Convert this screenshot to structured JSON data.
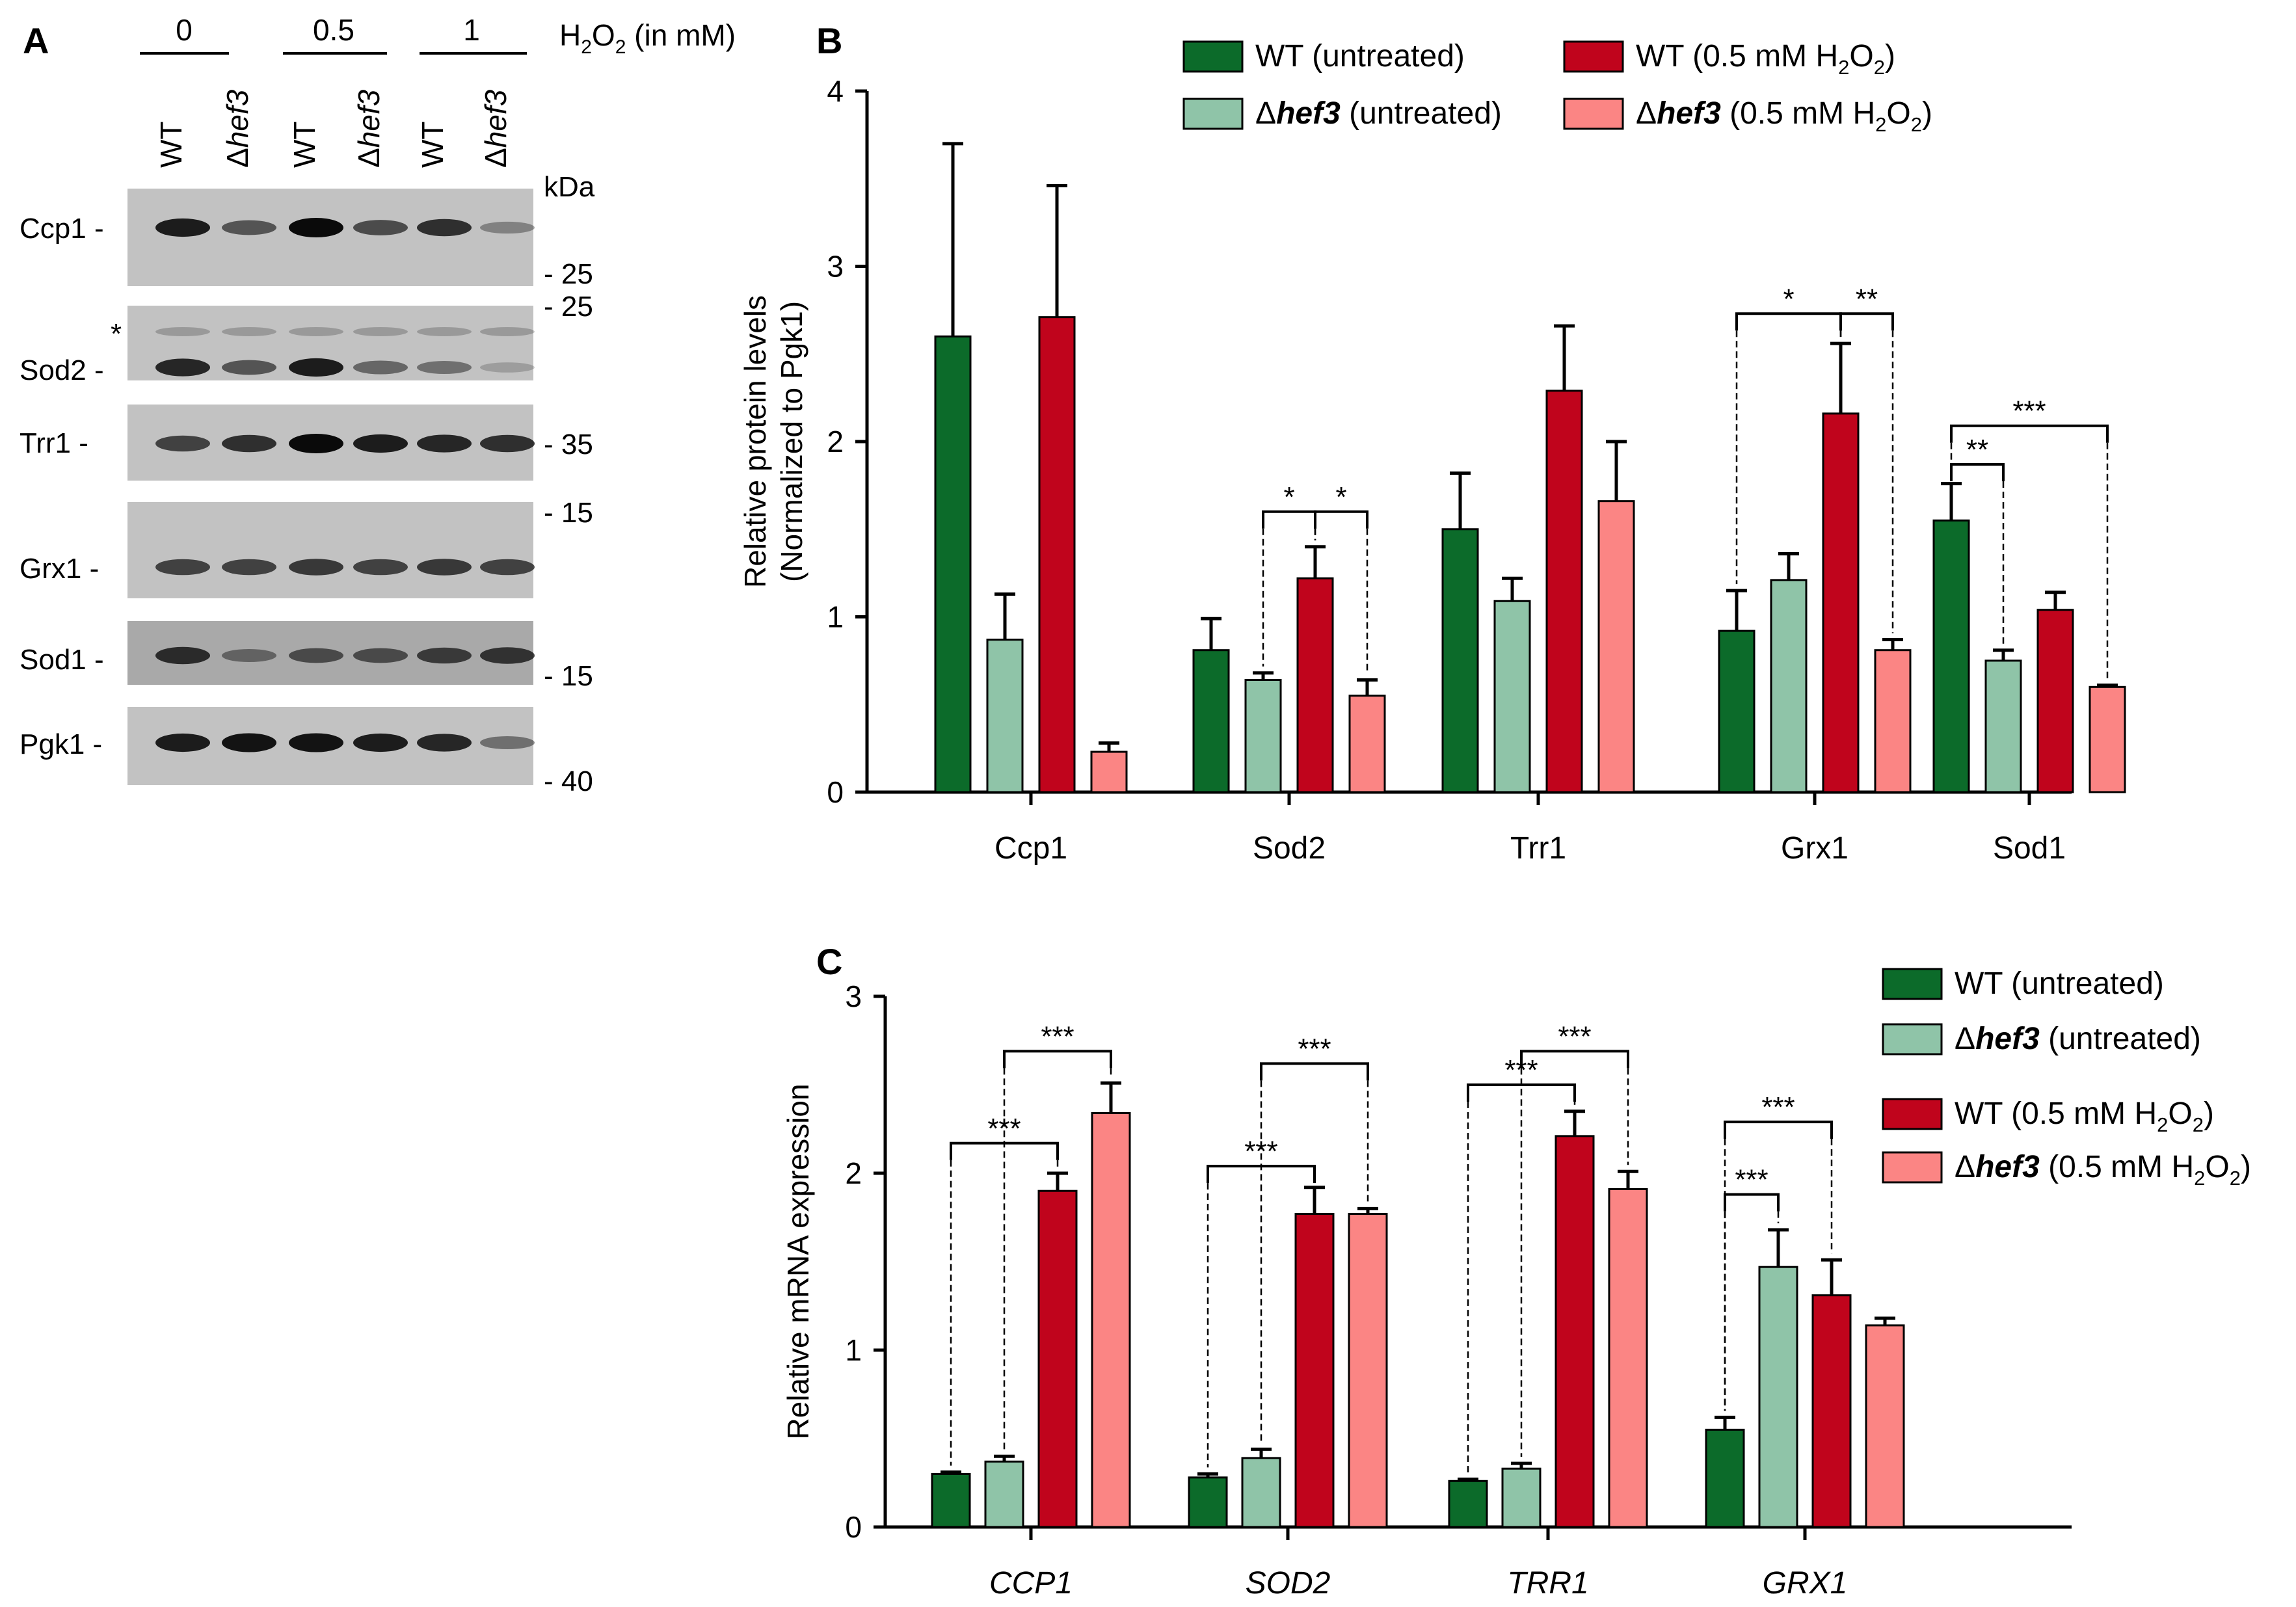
{
  "colors": {
    "wt_untreated": "#0c6b2a",
    "hef3_untreated": "#8fc4a8",
    "wt_h2o2": "#c0041c",
    "hef3_h2o2": "#fb8584",
    "blot_bg": "#c2c2c2"
  },
  "panelA": {
    "label": "A",
    "treatment_label": "H2O2 (in mM)",
    "doses": [
      "0",
      "0.5",
      "1"
    ],
    "lane_labels": [
      "WT",
      "Δhef3",
      "WT",
      "Δhef3",
      "WT",
      "Δhef3"
    ],
    "kda_label": "kDa",
    "nonspecific_marker": "*",
    "proteins": [
      "Ccp1",
      "Sod2",
      "Trr1",
      "Grx1",
      "Sod1",
      "Pgk1"
    ],
    "markers": [
      "25",
      "25",
      "35",
      "15",
      "15",
      "40"
    ],
    "band_intensity": {
      "Ccp1": [
        0.9,
        0.6,
        1.0,
        0.65,
        0.8,
        0.35
      ],
      "Sod2": [
        0.85,
        0.6,
        0.9,
        0.5,
        0.45,
        0.2
      ],
      "Trr1": [
        0.7,
        0.8,
        1.0,
        0.9,
        0.85,
        0.8
      ],
      "Grx1": [
        0.7,
        0.7,
        0.75,
        0.7,
        0.75,
        0.7
      ],
      "Sod1": [
        0.8,
        0.45,
        0.6,
        0.6,
        0.7,
        0.75
      ],
      "Pgk1": [
        0.9,
        0.95,
        0.95,
        0.9,
        0.85,
        0.45
      ]
    }
  },
  "legendB": [
    "WT (untreated)",
    "Δhef3 (untreated)",
    "WT (0.5 mM H2O2)",
    "Δhef3 (0.5 mM H2O2)"
  ],
  "legendC": [
    "WT (untreated)",
    "Δhef3 (untreated)",
    "WT (0.5 mM H2O2)",
    "Δhef3 (0.5 mM H2O2)"
  ],
  "chart_data": [
    {
      "panel": "B",
      "type": "bar",
      "ylabel": "Relative protein levels (Normalized to Pgk1)",
      "ylabel_lines": [
        "Relative protein levels",
        "(Normalized to Pgk1)"
      ],
      "ylim": [
        0,
        4
      ],
      "yticks": [
        0,
        1,
        2,
        3,
        4
      ],
      "categories": [
        "Ccp1",
        "Sod2",
        "Trr1",
        "Grx1",
        "Sod1"
      ],
      "italic_categories": false,
      "series": [
        {
          "name": "WT (untreated)",
          "values": [
            2.6,
            0.81,
            1.5,
            0.92,
            1.55
          ],
          "errors": [
            1.1,
            0.18,
            0.32,
            0.23,
            0.21
          ]
        },
        {
          "name": "Δhef3 (untreated)",
          "values": [
            0.87,
            0.64,
            1.09,
            1.21,
            0.75
          ],
          "errors": [
            0.26,
            0.04,
            0.13,
            0.15,
            0.06
          ]
        },
        {
          "name": "WT (0.5 mM H2O2)",
          "values": [
            2.71,
            1.22,
            2.29,
            2.16,
            1.04
          ],
          "errors": [
            0.75,
            0.18,
            0.37,
            0.4,
            0.1
          ]
        },
        {
          "name": "Δhef3 (0.5 mM H2O2)",
          "values": [
            0.23,
            0.55,
            1.66,
            0.81,
            0.6
          ],
          "errors": [
            0.05,
            0.09,
            0.34,
            0.06,
            0.01
          ]
        }
      ],
      "significance": [
        {
          "category": "Sod2",
          "from": 1,
          "to": 2,
          "label": "*",
          "level": 1.6
        },
        {
          "category": "Sod2",
          "from": 2,
          "to": 3,
          "label": "*",
          "level": 1.6
        },
        {
          "category": "Grx1",
          "from": 0,
          "to": 2,
          "label": "*",
          "level": 2.73
        },
        {
          "category": "Grx1",
          "from": 2,
          "to": 3,
          "label": "**",
          "level": 2.73
        },
        {
          "category": "Sod1",
          "from": 0,
          "to": 1,
          "label": "**",
          "level": 1.87
        },
        {
          "category": "Sod1",
          "from": 0,
          "to": 3,
          "label": "***",
          "level": 2.09
        }
      ]
    },
    {
      "panel": "C",
      "type": "bar",
      "ylabel": "Relative mRNA expression",
      "ylabel_lines": [
        "Relative mRNA expression"
      ],
      "ylim": [
        0,
        3
      ],
      "yticks": [
        0,
        1,
        2,
        3
      ],
      "categories": [
        "CCP1",
        "SOD2",
        "TRR1",
        "GRX1"
      ],
      "italic_categories": true,
      "series": [
        {
          "name": "WT (untreated)",
          "values": [
            0.3,
            0.28,
            0.26,
            0.55
          ],
          "errors": [
            0.01,
            0.02,
            0.01,
            0.07
          ]
        },
        {
          "name": "Δhef3 (untreated)",
          "values": [
            0.37,
            0.39,
            0.33,
            1.47
          ],
          "errors": [
            0.03,
            0.05,
            0.03,
            0.21
          ]
        },
        {
          "name": "WT (0.5 mM H2O2)",
          "values": [
            1.9,
            1.77,
            2.21,
            1.31
          ],
          "errors": [
            0.1,
            0.15,
            0.14,
            0.2
          ]
        },
        {
          "name": "Δhef3 (0.5 mM H2O2)",
          "values": [
            2.34,
            1.77,
            1.91,
            1.14
          ],
          "errors": [
            0.17,
            0.03,
            0.1,
            0.04
          ]
        }
      ],
      "significance": [
        {
          "category": "CCP1",
          "from": 0,
          "to": 2,
          "label": "***",
          "level": 2.17
        },
        {
          "category": "CCP1",
          "from": 1,
          "to": 3,
          "label": "***",
          "level": 2.69
        },
        {
          "category": "SOD2",
          "from": 0,
          "to": 2,
          "label": "***",
          "level": 2.04
        },
        {
          "category": "SOD2",
          "from": 1,
          "to": 3,
          "label": "***",
          "level": 2.62
        },
        {
          "category": "TRR1",
          "from": 0,
          "to": 2,
          "label": "***",
          "level": 2.5
        },
        {
          "category": "TRR1",
          "from": 1,
          "to": 3,
          "label": "***",
          "level": 2.69
        },
        {
          "category": "GRX1",
          "from": 0,
          "to": 1,
          "label": "***",
          "level": 1.88
        },
        {
          "category": "GRX1",
          "from": 0,
          "to": 2,
          "label": "***",
          "level": 2.29
        }
      ]
    }
  ]
}
